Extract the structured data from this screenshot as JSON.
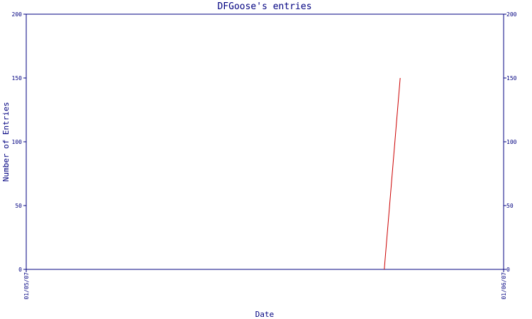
{
  "chart_data": {
    "type": "line",
    "title": "DFGoose's entries",
    "xlabel": "Date",
    "ylabel": "Number of Entries",
    "x_tick_labels": [
      "01/05/07",
      "01/06/07"
    ],
    "xlim": [
      "2007-01-05",
      "2007-01-06"
    ],
    "ylim": [
      0,
      200
    ],
    "y_ticks": [
      0,
      50,
      100,
      150,
      200
    ],
    "grid": false,
    "legend": "none",
    "series": [
      {
        "color": "#cc0000",
        "points": [
          {
            "x": "2007-01-05T18:00",
            "y": 0
          },
          {
            "x": "2007-01-05T18:48",
            "y": 150
          }
        ]
      }
    ],
    "colors": {
      "axis": "#000080",
      "text": "#000080",
      "line": "#cc0000",
      "background": "#ffffff"
    }
  }
}
